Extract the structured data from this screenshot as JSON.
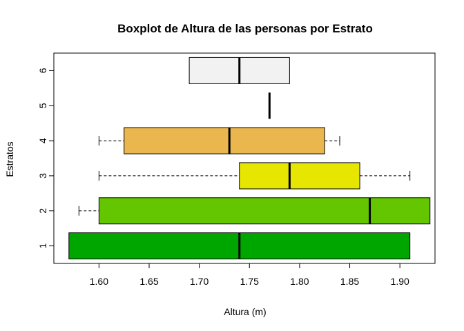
{
  "chart_data": {
    "type": "boxplot",
    "orientation": "horizontal",
    "title": "Boxplot de Altura de las personas por Estrato",
    "xlabel": "Altura (m)",
    "ylabel": "Estratos",
    "xlim": [
      1.555,
      1.935
    ],
    "x_ticks": [
      "1.60",
      "1.65",
      "1.70",
      "1.75",
      "1.80",
      "1.85",
      "1.90"
    ],
    "x_tick_values": [
      1.6,
      1.65,
      1.7,
      1.75,
      1.8,
      1.85,
      1.9
    ],
    "categories": [
      "1",
      "2",
      "3",
      "4",
      "5",
      "6"
    ],
    "boxes": [
      {
        "category": "1",
        "whisker_low": 1.57,
        "q1": 1.57,
        "median": 1.74,
        "q3": 1.91,
        "whisker_high": 1.91,
        "color": "#00A600"
      },
      {
        "category": "2",
        "whisker_low": 1.58,
        "q1": 1.6,
        "median": 1.87,
        "q3": 1.93,
        "whisker_high": 1.93,
        "color": "#63C600"
      },
      {
        "category": "3",
        "whisker_low": 1.6,
        "q1": 1.74,
        "median": 1.79,
        "q3": 1.86,
        "whisker_high": 1.91,
        "color": "#E6E600"
      },
      {
        "category": "4",
        "whisker_low": 1.6,
        "q1": 1.625,
        "median": 1.73,
        "q3": 1.825,
        "whisker_high": 1.84,
        "color": "#EAB64E"
      },
      {
        "category": "5",
        "whisker_low": 1.77,
        "q1": 1.77,
        "median": 1.77,
        "q3": 1.77,
        "whisker_high": 1.77,
        "color": "#EEB99F"
      },
      {
        "category": "6",
        "whisker_low": 1.69,
        "q1": 1.69,
        "median": 1.74,
        "q3": 1.79,
        "whisker_high": 1.79,
        "color": "#F2F2F2"
      }
    ],
    "grid": false,
    "legend": "none"
  }
}
